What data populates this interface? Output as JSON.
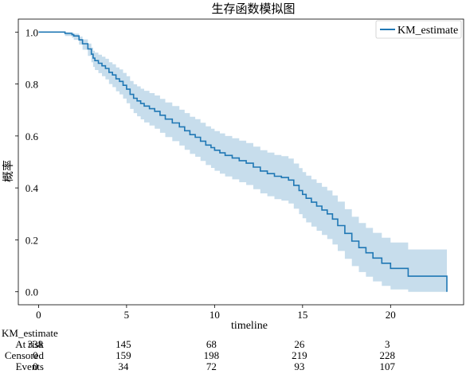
{
  "chart_data": {
    "type": "line",
    "title": "生存函数模拟图",
    "xlabel": "timeline",
    "ylabel": "概率",
    "xlim": [
      -1.15,
      24.15
    ],
    "ylim": [
      -0.05,
      1.05
    ],
    "xticks": [
      0,
      5,
      10,
      15,
      20
    ],
    "yticks": [
      0.0,
      0.2,
      0.4,
      0.6,
      0.8,
      1.0
    ],
    "xtick_labels": [
      "0",
      "5",
      "10",
      "15",
      "20"
    ],
    "ytick_labels": [
      "0.0",
      "0.2",
      "0.4",
      "0.6",
      "0.8",
      "1.0"
    ],
    "grid": false,
    "legend_position": "top-right",
    "colors": {
      "line": "#1f77b4",
      "band": "#1f77b4"
    },
    "series": [
      {
        "name": "KM_estimate",
        "x": [
          0,
          1.5,
          1.9,
          2.0,
          2.3,
          2.5,
          2.8,
          3.0,
          3.1,
          3.2,
          3.4,
          3.6,
          3.8,
          4.0,
          4.2,
          4.4,
          4.6,
          4.8,
          5.0,
          5.2,
          5.4,
          5.6,
          5.8,
          6.0,
          6.3,
          6.6,
          6.9,
          7.2,
          7.6,
          8.0,
          8.3,
          8.6,
          8.9,
          9.2,
          9.5,
          9.8,
          10.0,
          10.3,
          10.6,
          11.0,
          11.4,
          11.8,
          12.2,
          12.6,
          13.0,
          13.4,
          13.8,
          14.2,
          14.5,
          14.8,
          15.0,
          15.2,
          15.5,
          15.8,
          16.1,
          16.4,
          16.7,
          17.0,
          17.4,
          17.8,
          18.2,
          18.6,
          19.0,
          19.5,
          20.0,
          21.0,
          23.2
        ],
        "y": [
          1.0,
          0.995,
          0.99,
          0.985,
          0.97,
          0.955,
          0.935,
          0.915,
          0.9,
          0.89,
          0.88,
          0.87,
          0.86,
          0.845,
          0.835,
          0.82,
          0.81,
          0.795,
          0.78,
          0.76,
          0.745,
          0.735,
          0.725,
          0.715,
          0.705,
          0.695,
          0.68,
          0.665,
          0.65,
          0.635,
          0.62,
          0.605,
          0.595,
          0.58,
          0.565,
          0.555,
          0.545,
          0.535,
          0.525,
          0.515,
          0.505,
          0.495,
          0.48,
          0.465,
          0.455,
          0.445,
          0.44,
          0.43,
          0.41,
          0.39,
          0.375,
          0.36,
          0.345,
          0.33,
          0.315,
          0.3,
          0.28,
          0.255,
          0.225,
          0.195,
          0.17,
          0.15,
          0.13,
          0.11,
          0.09,
          0.06,
          0.0
        ],
        "ci_lower": [
          1.0,
          0.985,
          0.978,
          0.97,
          0.952,
          0.932,
          0.908,
          0.884,
          0.866,
          0.854,
          0.842,
          0.83,
          0.818,
          0.8,
          0.788,
          0.772,
          0.76,
          0.744,
          0.726,
          0.704,
          0.688,
          0.676,
          0.664,
          0.652,
          0.64,
          0.628,
          0.612,
          0.596,
          0.58,
          0.563,
          0.547,
          0.531,
          0.52,
          0.504,
          0.488,
          0.477,
          0.466,
          0.455,
          0.444,
          0.433,
          0.422,
          0.411,
          0.395,
          0.379,
          0.368,
          0.357,
          0.351,
          0.34,
          0.32,
          0.299,
          0.283,
          0.267,
          0.251,
          0.235,
          0.219,
          0.203,
          0.182,
          0.157,
          0.127,
          0.099,
          0.076,
          0.058,
          0.04,
          0.023,
          0.009,
          0.0,
          0.0
        ],
        "ci_upper": [
          1.0,
          1.0,
          0.997,
          0.994,
          0.983,
          0.972,
          0.956,
          0.94,
          0.928,
          0.921,
          0.913,
          0.905,
          0.897,
          0.884,
          0.876,
          0.864,
          0.856,
          0.843,
          0.83,
          0.812,
          0.799,
          0.791,
          0.782,
          0.774,
          0.765,
          0.756,
          0.743,
          0.729,
          0.715,
          0.701,
          0.688,
          0.674,
          0.665,
          0.651,
          0.637,
          0.628,
          0.619,
          0.61,
          0.6,
          0.591,
          0.582,
          0.573,
          0.559,
          0.545,
          0.536,
          0.527,
          0.522,
          0.513,
          0.494,
          0.476,
          0.461,
          0.447,
          0.433,
          0.419,
          0.404,
          0.39,
          0.371,
          0.347,
          0.318,
          0.289,
          0.265,
          0.246,
          0.227,
          0.208,
          0.19,
          0.163,
          0.163
        ]
      }
    ],
    "at_risk_table": {
      "title": "KM_estimate",
      "columns": [
        0,
        5,
        10,
        15,
        20
      ],
      "rows": [
        {
          "label": "At risk",
          "values": [
            "338",
            "145",
            "68",
            "26",
            "3"
          ]
        },
        {
          "label": "Censored",
          "values": [
            "0",
            "159",
            "198",
            "219",
            "228"
          ]
        },
        {
          "label": "Events",
          "values": [
            "0",
            "34",
            "72",
            "93",
            "107"
          ]
        }
      ]
    }
  }
}
